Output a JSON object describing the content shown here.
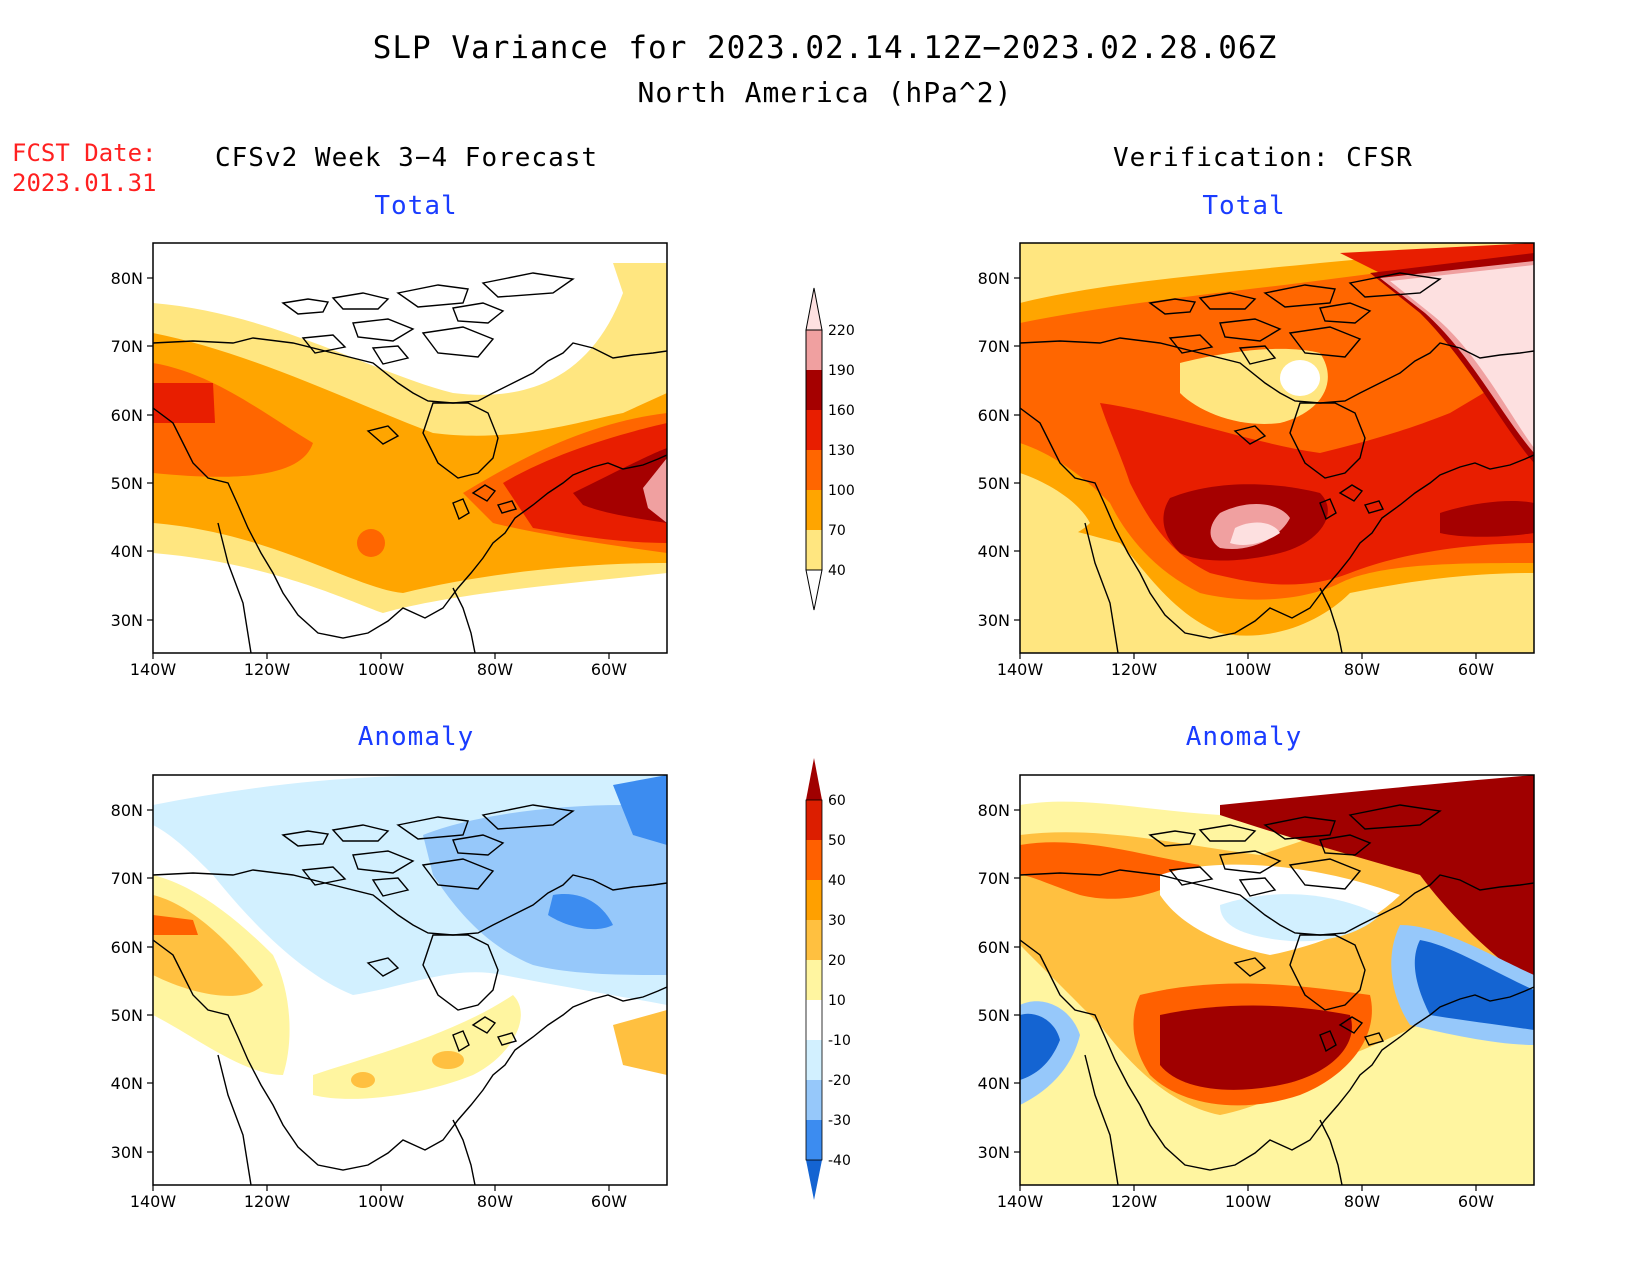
{
  "title": {
    "line1": "SLP Variance for 2023.02.14.12Z−2023.02.28.06Z",
    "line2": "North America (hPa^2)"
  },
  "forecast_date": {
    "label": "FCST Date:",
    "value": "2023.01.31"
  },
  "columns": {
    "left": "CFSv2 Week 3−4 Forecast",
    "right": "Verification: CFSR"
  },
  "panels": {
    "forecast_total": "Total",
    "verification_total": "Total",
    "forecast_anomaly": "Anomaly",
    "verification_anomaly": "Anomaly"
  },
  "axes": {
    "lat_ticks": [
      "80N",
      "70N",
      "60N",
      "50N",
      "40N",
      "30N"
    ],
    "lon_ticks": [
      "140W",
      "120W",
      "100W",
      "80W",
      "60W"
    ]
  },
  "colorbars": {
    "total": {
      "levels": [
        "40",
        "70",
        "100",
        "130",
        "160",
        "190",
        "220"
      ],
      "colors": [
        "#ffe680",
        "#ffa500",
        "#ff6600",
        "#e81e00",
        "#a50000",
        "#f0a0a0",
        "#fde0e0"
      ]
    },
    "anomaly": {
      "levels": [
        "-40",
        "-30",
        "-20",
        "-10",
        "10",
        "20",
        "30",
        "40",
        "50",
        "60"
      ],
      "colors": [
        "#1464d2",
        "#3c8cf0",
        "#96c8fa",
        "#d2f0ff",
        "#ffffff",
        "#fff5a0",
        "#ffc040",
        "#ffa000",
        "#ff6000",
        "#dc1e00",
        "#a00000"
      ]
    }
  },
  "map_colors": {
    "total": {
      "white": "#ffffff",
      "c40": "#ffe680",
      "c70": "#ffa500",
      "c100": "#ff6600",
      "c130": "#e81e00",
      "c160": "#a50000",
      "c190": "#f0a0a0",
      "c220": "#fde0e0"
    },
    "anomaly": {
      "n40": "#1464d2",
      "n30": "#3c8cf0",
      "n20": "#96c8fa",
      "n10": "#d2f0ff",
      "zero": "#ffffff",
      "p10": "#fff5a0",
      "p20": "#ffc040",
      "p30": "#ffa000",
      "p40": "#ff6000",
      "p50": "#dc1e00",
      "p60": "#a00000"
    }
  }
}
